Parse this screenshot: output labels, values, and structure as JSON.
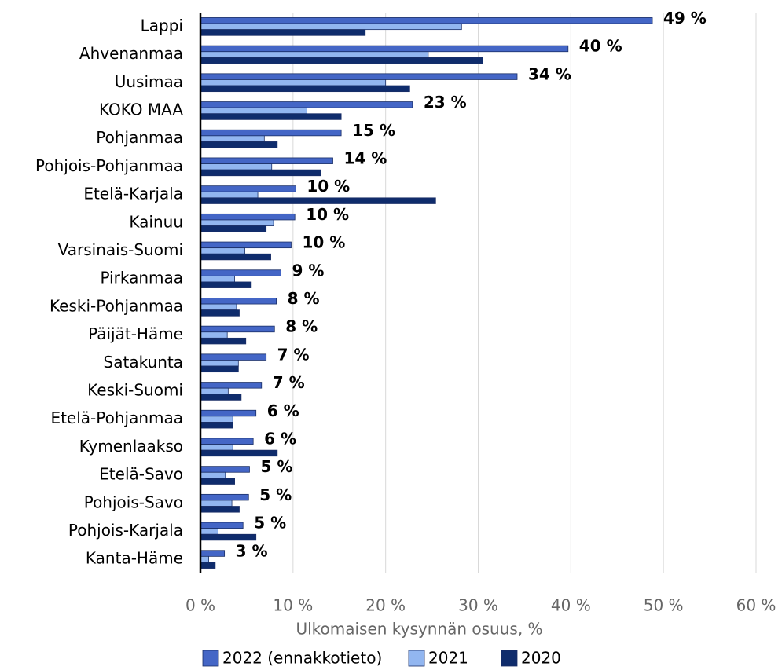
{
  "chart_data": {
    "type": "hbar",
    "categories": [
      "Lappi",
      "Ahvenanmaa",
      "Uusimaa",
      "KOKO MAA",
      "Pohjanmaa",
      "Pohjois-Pohjanmaa",
      "Etelä-Karjala",
      "Kainuu",
      "Varsinais-Suomi",
      "Pirkanmaa",
      "Keski-Pohjanmaa",
      "Päijät-Häme",
      "Satakunta",
      "Keski-Suomi",
      "Etelä-Pohjanmaa",
      "Kymenlaakso",
      "Etelä-Savo",
      "Pohjois-Savo",
      "Pohjois-Karjala",
      "Kanta-Häme"
    ],
    "series": [
      {
        "name": "2022 (ennakkotieto)",
        "color": "#4466c6",
        "values": [
          48.8,
          39.7,
          34.2,
          22.9,
          15.2,
          14.3,
          10.3,
          10.2,
          9.8,
          8.7,
          8.2,
          8.0,
          7.1,
          6.6,
          6.0,
          5.7,
          5.3,
          5.2,
          4.6,
          2.6
        ],
        "value_labels": [
          "49 %",
          "40 %",
          "34 %",
          "23 %",
          "15 %",
          "14 %",
          "10 %",
          "10 %",
          "10 %",
          "9 %",
          "8 %",
          "8 %",
          "7 %",
          "7 %",
          "6 %",
          "6 %",
          "5 %",
          "5 %",
          "5 %",
          "3 %"
        ]
      },
      {
        "name": "2021",
        "color": "#92b6f0",
        "values": [
          28.2,
          24.6,
          20.0,
          11.5,
          6.9,
          7.7,
          6.2,
          7.9,
          4.8,
          3.7,
          3.9,
          2.9,
          4.1,
          3.0,
          3.5,
          3.5,
          2.7,
          3.4,
          1.9,
          0.9
        ]
      },
      {
        "name": "2020",
        "color": "#0f2c6c",
        "values": [
          17.8,
          30.5,
          22.6,
          15.2,
          8.3,
          13.0,
          25.4,
          7.1,
          7.6,
          5.5,
          4.2,
          4.9,
          4.1,
          4.4,
          3.5,
          8.3,
          3.7,
          4.2,
          6.0,
          1.6
        ]
      }
    ],
    "x_label": "Ulkomaisen kysynnän osuus, %",
    "xlim": [
      0,
      60
    ],
    "xticks": [
      {
        "value": 0,
        "label": "0 %"
      },
      {
        "value": 10,
        "label": "10 %"
      },
      {
        "value": 20,
        "label": "20 %"
      },
      {
        "value": 30,
        "label": "30 %"
      },
      {
        "value": 40,
        "label": "40 %"
      },
      {
        "value": 50,
        "label": "50 %"
      },
      {
        "value": 60,
        "label": "60 %"
      }
    ],
    "grid": true,
    "legend": "bottom"
  }
}
